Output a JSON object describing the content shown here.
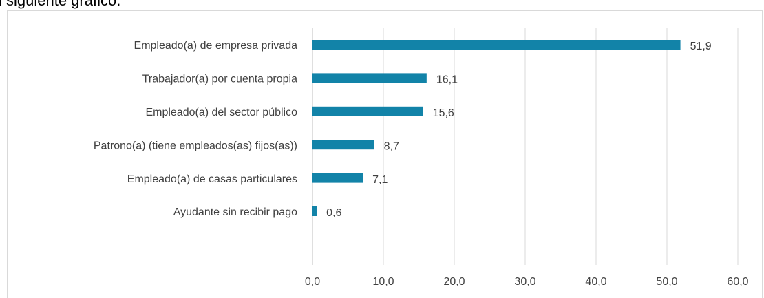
{
  "caption": "l siguiente gráfico.",
  "chart_data": {
    "type": "bar",
    "orientation": "horizontal",
    "categories": [
      "Empleado(a) de empresa privada",
      "Trabajador(a) por cuenta propia",
      "Empleado(a) del sector público",
      "Patrono(a) (tiene empleados(as) fijos(as))",
      "Empleado(a) de casas particulares",
      "Ayudante sin recibir pago"
    ],
    "values": [
      51.9,
      16.1,
      15.6,
      8.7,
      7.1,
      0.6
    ],
    "value_labels": [
      "51,9",
      "16,1",
      "15,6",
      "8,7",
      "7,1",
      "0,6"
    ],
    "color": "#1283a8",
    "xlim": [
      0,
      60
    ],
    "xticks": [
      {
        "value": 0,
        "label": "0,0"
      },
      {
        "value": 10,
        "label": "10,0"
      },
      {
        "value": 20,
        "label": "20,0"
      },
      {
        "value": 30,
        "label": "30,0"
      },
      {
        "value": 40,
        "label": "40,0"
      },
      {
        "value": 50,
        "label": "50,0"
      },
      {
        "value": 60,
        "label": "60,0"
      }
    ],
    "grid": true
  }
}
